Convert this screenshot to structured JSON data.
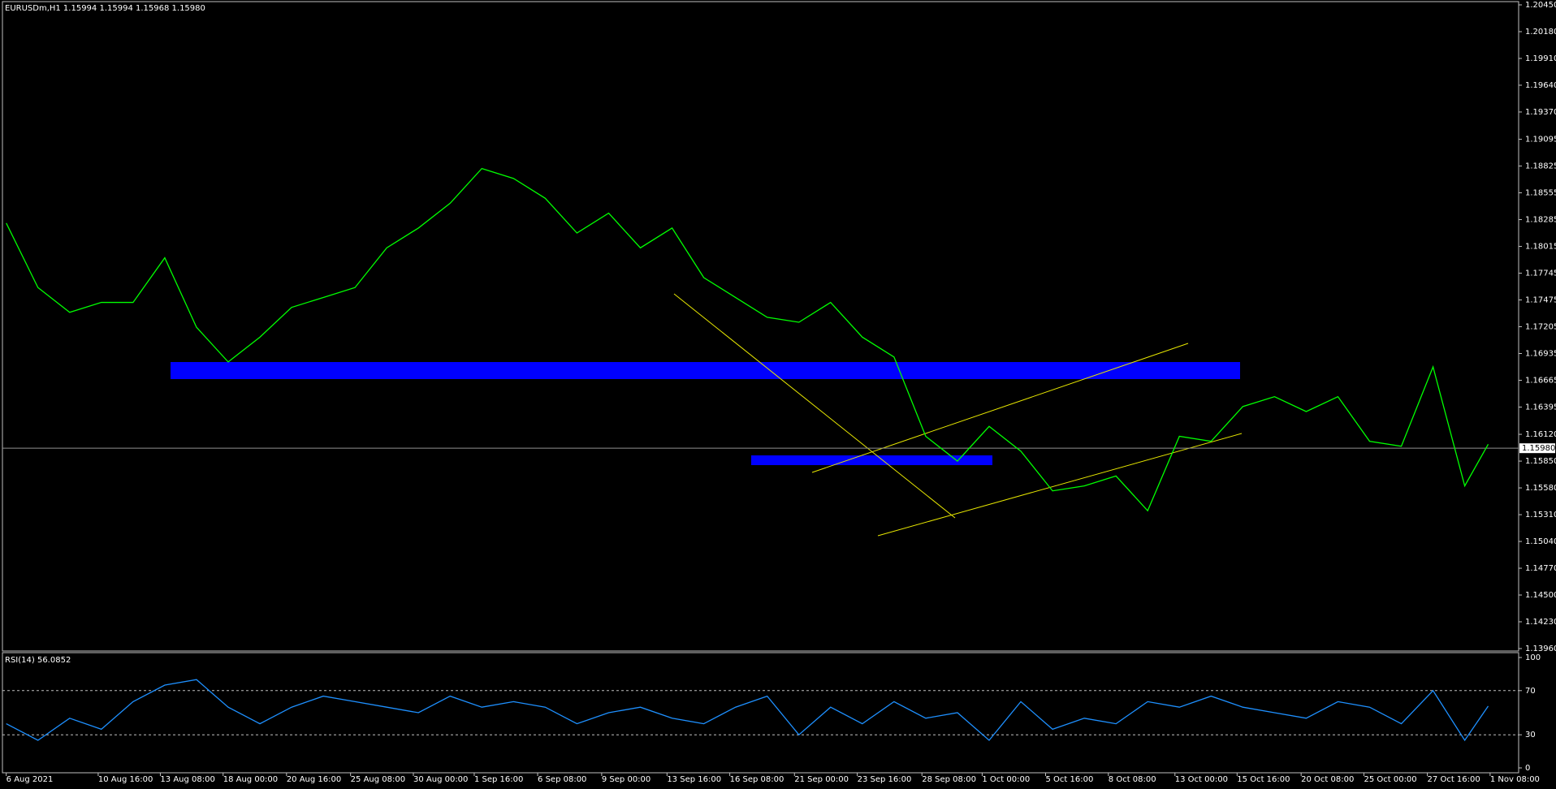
{
  "chart_data": [
    {
      "type": "line",
      "title": "EURUSDm,H1 1.15994 1.15994 1.15968 1.15980",
      "color": "#00ff00",
      "x": [
        0,
        0.5,
        1,
        1.5,
        2,
        2.5,
        3,
        3.5,
        4,
        4.5,
        5,
        5.5,
        6,
        6.5,
        7,
        7.5,
        8,
        8.5,
        9,
        9.5,
        10,
        10.5,
        11,
        11.5,
        12,
        12.5,
        13,
        13.5,
        14,
        14.5,
        15,
        15.5,
        16,
        16.5,
        17,
        17.5,
        18,
        18.5,
        19,
        19.5,
        20,
        20.5,
        21,
        21.5,
        22,
        22.5,
        23,
        23.37
      ],
      "values": [
        1.1825,
        1.176,
        1.1735,
        1.1745,
        1.1745,
        1.179,
        1.172,
        1.1685,
        1.171,
        1.174,
        1.175,
        1.176,
        1.18,
        1.182,
        1.1845,
        1.188,
        1.187,
        1.185,
        1.1815,
        1.1835,
        1.18,
        1.182,
        1.177,
        1.175,
        1.173,
        1.1725,
        1.1745,
        1.171,
        1.169,
        1.161,
        1.1585,
        1.162,
        1.1595,
        1.1555,
        1.156,
        1.157,
        1.1535,
        1.161,
        1.1605,
        1.164,
        1.165,
        1.1635,
        1.165,
        1.1605,
        1.16,
        1.168,
        1.156,
        1.1602
      ],
      "xlim": [
        -0.06,
        23.85
      ],
      "xticks": [
        {
          "value": 0,
          "label": "6 Aug 2021"
        },
        {
          "value": 1.45,
          "label": "10 Aug 16:00"
        },
        {
          "value": 2.43,
          "label": "13 Aug 08:00"
        },
        {
          "value": 3.42,
          "label": "18 Aug 00:00"
        },
        {
          "value": 4.42,
          "label": "20 Aug 16:00"
        },
        {
          "value": 5.43,
          "label": "25 Aug 08:00"
        },
        {
          "value": 6.42,
          "label": "30 Aug 00:00"
        },
        {
          "value": 7.38,
          "label": "1 Sep 16:00"
        },
        {
          "value": 8.38,
          "label": "6 Sep 08:00"
        },
        {
          "value": 9.39,
          "label": "9 Sep 00:00"
        },
        {
          "value": 10.42,
          "label": "13 Sep 16:00"
        },
        {
          "value": 11.41,
          "label": "16 Sep 08:00"
        },
        {
          "value": 12.43,
          "label": "21 Sep 00:00"
        },
        {
          "value": 13.42,
          "label": "23 Sep 16:00"
        },
        {
          "value": 14.44,
          "label": "28 Sep 08:00"
        },
        {
          "value": 15.39,
          "label": "1 Oct 00:00"
        },
        {
          "value": 16.39,
          "label": "5 Oct 16:00"
        },
        {
          "value": 17.38,
          "label": "8 Oct 08:00"
        },
        {
          "value": 18.43,
          "label": "13 Oct 00:00"
        },
        {
          "value": 19.41,
          "label": "15 Oct 16:00"
        },
        {
          "value": 20.42,
          "label": "20 Oct 08:00"
        },
        {
          "value": 21.41,
          "label": "25 Oct 00:00"
        },
        {
          "value": 22.41,
          "label": "27 Oct 16:00"
        },
        {
          "value": 23.4,
          "label": "1 Nov 08:00"
        }
      ],
      "ylim": [
        1.1396,
        1.2045
      ],
      "yticks": [
        {
          "value": 1.2045,
          "label": "1.20450"
        },
        {
          "value": 1.2018,
          "label": "1.20180"
        },
        {
          "value": 1.1991,
          "label": "1.19910"
        },
        {
          "value": 1.1964,
          "label": "1.19640"
        },
        {
          "value": 1.1937,
          "label": "1.19370"
        },
        {
          "value": 1.19095,
          "label": "1.19095"
        },
        {
          "value": 1.18825,
          "label": "1.18825"
        },
        {
          "value": 1.18555,
          "label": "1.18555"
        },
        {
          "value": 1.18285,
          "label": "1.18285"
        },
        {
          "value": 1.18015,
          "label": "1.18015"
        },
        {
          "value": 1.17745,
          "label": "1.17745"
        },
        {
          "value": 1.17475,
          "label": "1.17475"
        },
        {
          "value": 1.17205,
          "label": "1.17205"
        },
        {
          "value": 1.16935,
          "label": "1.16935"
        },
        {
          "value": 1.16665,
          "label": "1.16665"
        },
        {
          "value": 1.16395,
          "label": "1.16395"
        },
        {
          "value": 1.1612,
          "label": "1.16120"
        },
        {
          "value": 1.1585,
          "label": "1.15850"
        },
        {
          "value": 1.1558,
          "label": "1.15580"
        },
        {
          "value": 1.1531,
          "label": "1.15310"
        },
        {
          "value": 1.1504,
          "label": "1.15040"
        },
        {
          "value": 1.1477,
          "label": "1.14770"
        },
        {
          "value": 1.145,
          "label": "1.14500"
        },
        {
          "value": 1.1423,
          "label": "1.14230"
        },
        {
          "value": 1.1396,
          "label": "1.13960"
        }
      ],
      "last_price": {
        "value": 1.1598,
        "label": "1.15980"
      }
    },
    {
      "type": "line",
      "title": "RSI(14) 56.0852",
      "color": "#1e90ff",
      "values": [
        40,
        25,
        45,
        35,
        60,
        75,
        80,
        55,
        40,
        55,
        65,
        60,
        55,
        50,
        65,
        55,
        60,
        55,
        40,
        50,
        55,
        45,
        40,
        55,
        65,
        30,
        55,
        40,
        60,
        45,
        50,
        25,
        60,
        35,
        45,
        40,
        60,
        55,
        65,
        55,
        50,
        45,
        60,
        55,
        40,
        70,
        25,
        56
      ],
      "ylim": [
        0,
        100
      ],
      "yticks": [
        0,
        30,
        70,
        100
      ],
      "levels": [
        30,
        70
      ]
    }
  ]
}
